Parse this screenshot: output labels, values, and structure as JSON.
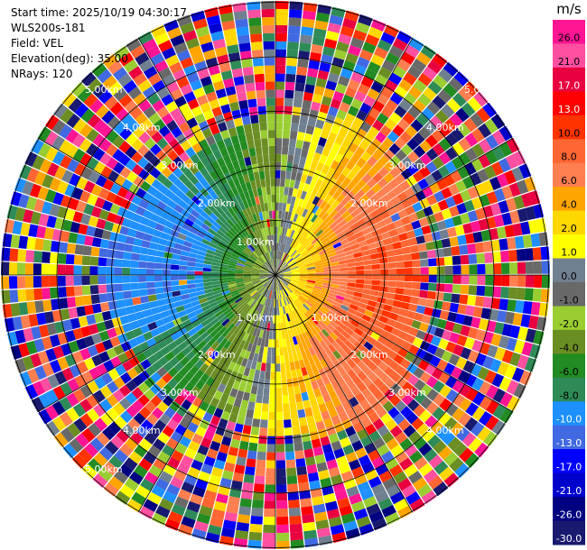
{
  "header": {
    "start_time": "Start time: 2025/10/19 04:30:17",
    "instrument": "WLS200s-181",
    "field": "Field: VEL",
    "elevation": "Elevation(deg): 35.00",
    "nrays": "NRays: 120"
  },
  "chart_data": {
    "type": "heatmap",
    "projection": "polar-ppi",
    "field": "VEL",
    "unit": "m/s",
    "range_rings_km": [
      1,
      2,
      3,
      4,
      5
    ],
    "ring_labels": [
      "1.00km",
      "2.00km",
      "3.00km",
      "4.00km",
      "5.00km"
    ],
    "ring_label_text": {
      "r1": "1.00km",
      "r2": "2.00km",
      "r3": "3.00km",
      "r4": "4.00km",
      "r5": "5.00km"
    },
    "max_range_km": 5,
    "n_rays": 120,
    "azimuth_lines_deg": [
      0,
      30,
      60,
      90,
      120,
      150,
      180,
      210,
      240,
      270,
      300,
      330
    ],
    "colorbar": {
      "title": "m/s",
      "ticks": [
        "26.0",
        "21.0",
        "17.0",
        "13.0",
        "10.0",
        "8.0",
        "6.0",
        "4.0",
        "2.0",
        "1.0",
        "0.0",
        "-1.0",
        "-2.0",
        "-4.0",
        "-6.0",
        "-8.0",
        "-10.0",
        "-13.0",
        "-17.0",
        "-21.0",
        "-26.0",
        "-30.0"
      ],
      "colors": [
        "#ff1493",
        "#ff4fa0",
        "#e8003f",
        "#ff0000",
        "#ff3300",
        "#ff6633",
        "#ff7f50",
        "#ffa500",
        "#ffd700",
        "#ffff00",
        "#708090",
        "#696969",
        "#9acd32",
        "#6b8e23",
        "#228b22",
        "#2e8b57",
        "#1e90ff",
        "#4169e1",
        "#0000ff",
        "#0000cd",
        "#000080",
        "#191970"
      ]
    },
    "wind_pattern": {
      "description_value_near_radar": 0,
      "toward_ne_sector_velocity": 10,
      "toward_sw_sector_velocity": -6,
      "noise_start_km": 2.8
    }
  }
}
